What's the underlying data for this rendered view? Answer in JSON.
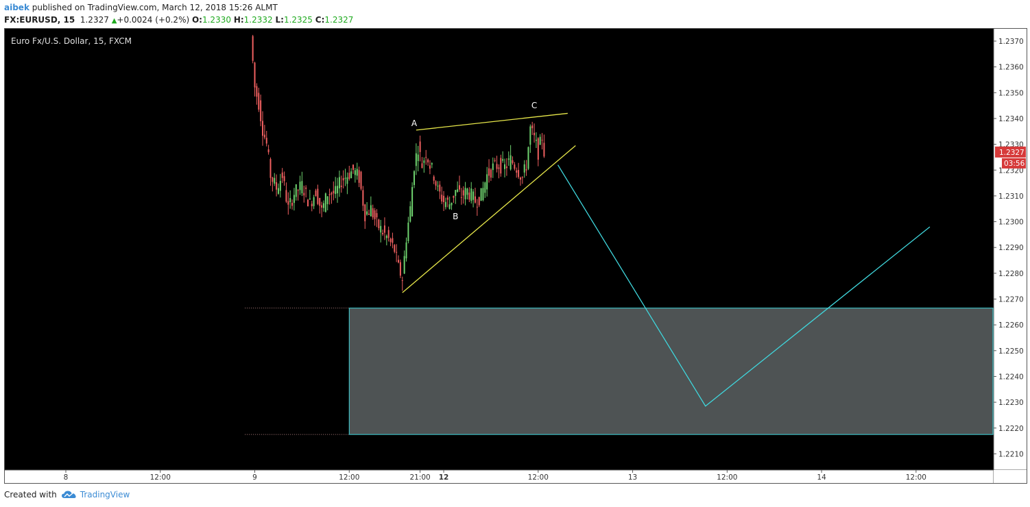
{
  "header": {
    "user": "aibek",
    "published_text": "published on TradingView.com, March 12, 2018 15:26 ALMT",
    "symbol": "FX:EURUSD, 15",
    "last": "1.2327",
    "change": "+0.0024 (+0.2%)",
    "open_label": "O:",
    "open": "1.2330",
    "high_label": "H:",
    "high": "1.2332",
    "low_label": "L:",
    "low": "1.2325",
    "close_label": "C:",
    "close": "1.2327"
  },
  "footer": {
    "created_with": "Created with",
    "brand": "TradingView"
  },
  "colors": {
    "background": "#000000",
    "up_candle": "#6fd36f",
    "down_candle": "#f06060",
    "trendline": "#e8e84a",
    "projection": "#3fd6dc",
    "zone_fill": "#4e5354",
    "price_badge": "#d63a3a",
    "axis_bg": "#ffffff"
  },
  "chart_data": {
    "type": "candlestick",
    "title": "Euro Fx/U.S. Dollar, 15, FXCM",
    "price_badge": "1.2327",
    "countdown_badge": "03:56",
    "ylim": [
      1.2205,
      1.2378
    ],
    "y_ticks": [
      "1.2370",
      "1.2360",
      "1.2350",
      "1.2340",
      "1.2330",
      "1.2320",
      "1.2310",
      "1.2300",
      "1.2290",
      "1.2280",
      "1.2270",
      "1.2260",
      "1.2250",
      "1.2240",
      "1.2230",
      "1.2220",
      "1.2210"
    ],
    "x_ticks": [
      {
        "label": "8",
        "t": 3
      },
      {
        "label": "12:00",
        "t": 51
      },
      {
        "label": "9",
        "t": 99
      },
      {
        "label": "12:00",
        "t": 147
      },
      {
        "label": "21:00",
        "t": 183
      },
      {
        "label": "12",
        "t": 195,
        "bold": true
      },
      {
        "label": "12:00",
        "t": 243
      },
      {
        "label": "13",
        "t": 291
      },
      {
        "label": "12:00",
        "t": 339
      },
      {
        "label": "14",
        "t": 387
      },
      {
        "label": "12:00",
        "t": 435
      }
    ],
    "price_path": [
      [
        98,
        1.2372
      ],
      [
        100,
        1.2352
      ],
      [
        102,
        1.2346
      ],
      [
        104,
        1.2336
      ],
      [
        106,
        1.233
      ],
      [
        108,
        1.2318
      ],
      [
        111,
        1.2313
      ],
      [
        114,
        1.2318
      ],
      [
        117,
        1.2305
      ],
      [
        120,
        1.2311
      ],
      [
        124,
        1.2314
      ],
      [
        128,
        1.2307
      ],
      [
        131,
        1.2312
      ],
      [
        134,
        1.2304
      ],
      [
        137,
        1.2311
      ],
      [
        141,
        1.2311
      ],
      [
        144,
        1.2316
      ],
      [
        147,
        1.2318
      ],
      [
        150,
        1.232
      ],
      [
        153,
        1.2317
      ],
      [
        156,
        1.2303
      ],
      [
        159,
        1.2305
      ],
      [
        162,
        1.2299
      ],
      [
        165,
        1.2296
      ],
      [
        168,
        1.2293
      ],
      [
        171,
        1.2289
      ],
      [
        173,
        1.2282
      ],
      [
        175,
        1.2278
      ],
      [
        177,
        1.2294
      ],
      [
        179,
        1.2305
      ],
      [
        181,
        1.2322
      ],
      [
        183,
        1.2329
      ],
      [
        185,
        1.2322
      ],
      [
        187,
        1.2327
      ],
      [
        189,
        1.2322
      ],
      [
        191,
        1.2318
      ],
      [
        193,
        1.2312
      ],
      [
        196,
        1.2308
      ],
      [
        199,
        1.2307
      ],
      [
        202,
        1.2312
      ],
      [
        205,
        1.231
      ],
      [
        208,
        1.2312
      ],
      [
        212,
        1.2308
      ],
      [
        215,
        1.231
      ],
      [
        218,
        1.2318
      ],
      [
        221,
        1.2321
      ],
      [
        224,
        1.2322
      ],
      [
        227,
        1.2321
      ],
      [
        230,
        1.2324
      ],
      [
        233,
        1.2321
      ],
      [
        236,
        1.2317
      ],
      [
        238,
        1.2322
      ],
      [
        240,
        1.2336
      ],
      [
        242,
        1.2332
      ],
      [
        244,
        1.2327
      ],
      [
        246,
        1.2333
      ],
      [
        247,
        1.2327
      ]
    ],
    "annotations": {
      "wave_labels": [
        {
          "text": "A",
          "t": 180,
          "price": 1.2337
        },
        {
          "text": "B",
          "t": 201,
          "price": 1.2301
        },
        {
          "text": "C",
          "t": 241,
          "price": 1.2344
        }
      ],
      "upper_trendline": [
        [
          181,
          1.23355
        ],
        [
          258,
          1.2342
        ]
      ],
      "lower_trendline": [
        [
          174,
          1.22725
        ],
        [
          262,
          1.23295
        ]
      ],
      "projection_path": [
        [
          253,
          1.2322
        ],
        [
          328,
          1.22285
        ],
        [
          442,
          1.2298
        ]
      ],
      "target_zone": {
        "t_start": 147,
        "price_top": 1.22665,
        "price_bottom": 1.22175
      },
      "zone_guides": {
        "t_start": 94
      }
    }
  }
}
